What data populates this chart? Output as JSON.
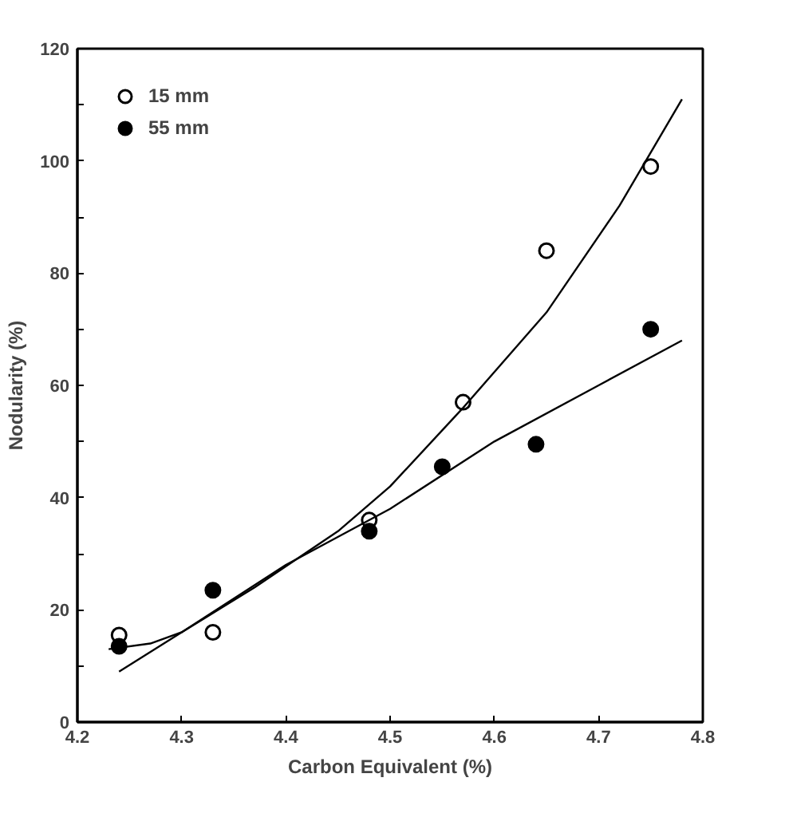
{
  "chart_data": {
    "type": "scatter",
    "xlabel": "Carbon Equivalent (%)",
    "ylabel": "Nodularity (%)",
    "xlim": [
      4.2,
      4.8
    ],
    "xticks": [
      4.2,
      4.3,
      4.4,
      4.5,
      4.6,
      4.7,
      4.8
    ],
    "ylim": [
      0,
      120
    ],
    "yticks": [
      0,
      {
        "value": 10,
        "label": null
      },
      20,
      {
        "value": 30,
        "label": null
      },
      40,
      {
        "value": 50,
        "label": null
      },
      60,
      {
        "value": 70,
        "label": null
      },
      80,
      {
        "value": 90,
        "label": null
      },
      100,
      {
        "value": 110,
        "label": null
      },
      120
    ],
    "grid": false,
    "legend": "top left",
    "series": [
      {
        "name": "15 mm",
        "color": "#000000",
        "marker": "circle",
        "x": [
          4.24,
          4.33,
          4.48,
          4.57,
          4.65,
          4.75
        ],
        "values": [
          15.5,
          16,
          36,
          57,
          84,
          99
        ]
      },
      {
        "name": "55 mm",
        "color": "#000000",
        "marker": "circle",
        "x": [
          4.24,
          4.33,
          4.48,
          4.55,
          4.64,
          4.75
        ],
        "values": [
          13.5,
          23.5,
          34,
          45.5,
          49.5,
          70
        ]
      },
      {
        "type": "line",
        "marker": "none",
        "color": "#000000",
        "x": [
          4.24,
          4.3,
          4.37,
          4.45,
          4.5,
          4.57,
          4.65,
          4.72,
          4.78
        ],
        "values": [
          9,
          16,
          24,
          34,
          42,
          56,
          73,
          92,
          111
        ]
      },
      {
        "type": "line",
        "marker": "none",
        "color": "#000000",
        "x": [
          4.23,
          4.27,
          4.3,
          4.4,
          4.5,
          4.6,
          4.7,
          4.78
        ],
        "values": [
          13,
          14,
          16,
          28,
          38,
          50,
          60,
          68
        ]
      }
    ]
  }
}
